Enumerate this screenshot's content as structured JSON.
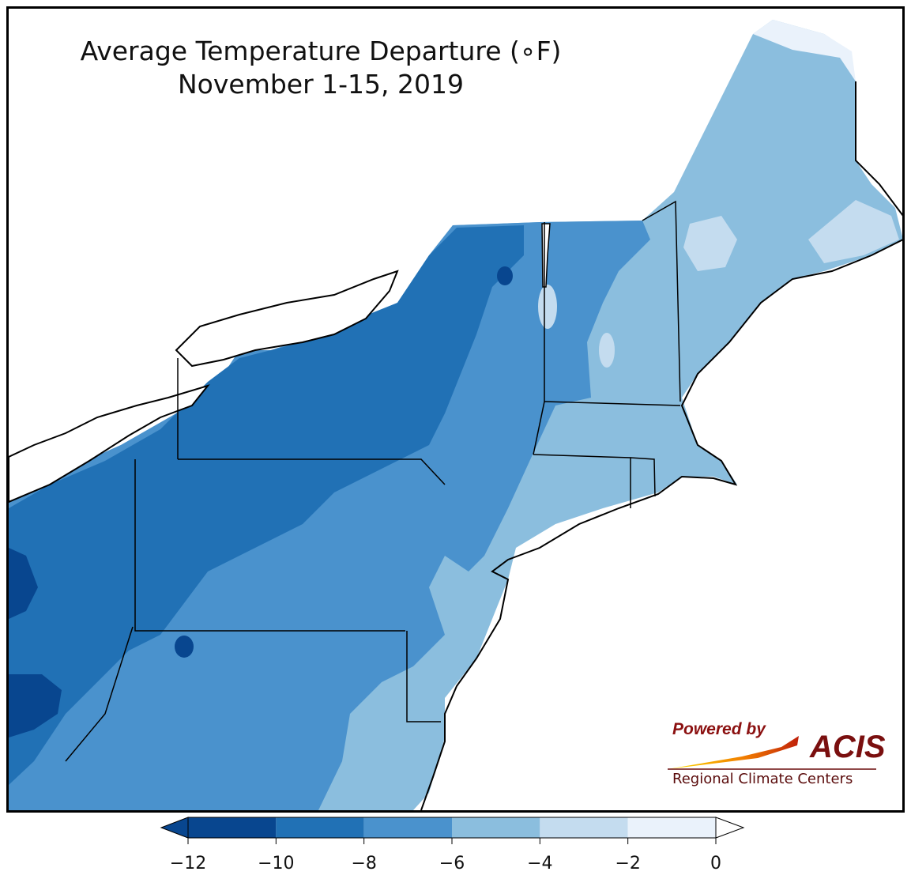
{
  "title": {
    "line1": "Average Temperature Departure (∘F)",
    "line2": "November 1-15, 2019"
  },
  "logo": {
    "powered_by": "Powered by",
    "acis": "ACIS",
    "regional": "Regional Climate Centers"
  },
  "colorbar": {
    "min": -12,
    "max": 0,
    "extend": "both",
    "colors": [
      "#08468f",
      "#2171b5",
      "#4a92cd",
      "#8bbede",
      "#c4dcef",
      "#eaf2fb"
    ],
    "ticks": [
      "−12",
      "−10",
      "−8",
      "−6",
      "−4",
      "−2",
      "0"
    ]
  }
}
